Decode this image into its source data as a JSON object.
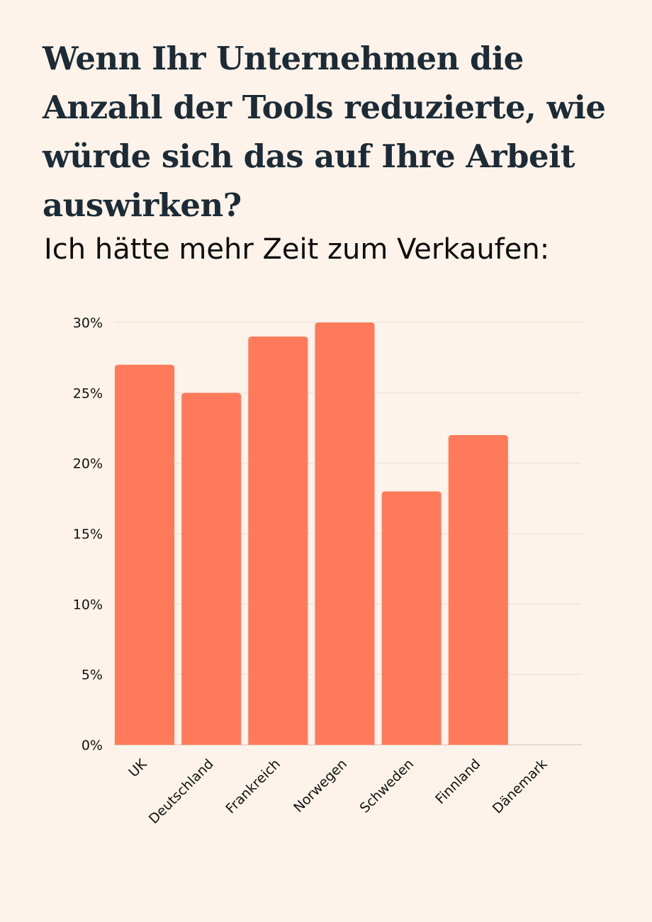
{
  "headline": "Wenn Ihr Unternehmen die Anzahl der Tools reduzierte, wie würde sich das auf Ihre Arbeit auswirken?",
  "chart_data": {
    "type": "bar",
    "title": "Ich hätte mehr Zeit zum Verkaufen:",
    "categories": [
      "UK",
      "Deutschland",
      "Frankreich",
      "Norwegen",
      "Schweden",
      "Finnland",
      "Dänemark"
    ],
    "values": [
      27,
      25,
      29,
      30,
      18,
      22,
      0
    ],
    "ylim": [
      0,
      30
    ],
    "yticks": [
      0,
      5,
      10,
      15,
      20,
      25,
      30
    ],
    "ytick_labels": [
      "0%",
      "5%",
      "10%",
      "15%",
      "20%",
      "25%",
      "30%"
    ],
    "xlabel": "",
    "ylabel": "",
    "grid": true,
    "bar_color": "#ff7a5a",
    "grid_color": "#ece0d5"
  }
}
